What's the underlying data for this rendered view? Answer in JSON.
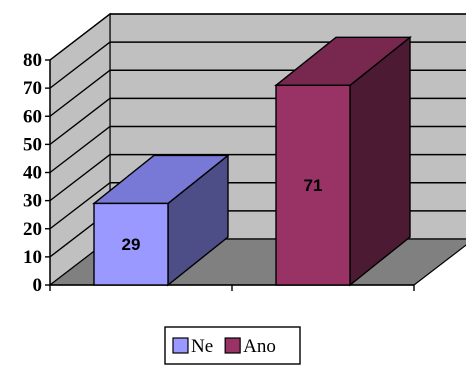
{
  "chart_data": {
    "type": "bar",
    "categories": [
      "Ne",
      "Ano"
    ],
    "values": [
      29,
      71
    ],
    "ylim": [
      0,
      80
    ],
    "yticks": [
      0,
      10,
      20,
      30,
      40,
      50,
      60,
      70,
      80
    ],
    "title": "",
    "xlabel": "",
    "ylabel": "",
    "grid": true,
    "three_d": true,
    "legend": {
      "placement": "bottom",
      "entries": [
        {
          "label": "Ne",
          "color": "#9999ff"
        },
        {
          "label": "Ano",
          "color": "#993366"
        }
      ]
    },
    "series_colors": {
      "front": [
        "#9999ff",
        "#993366"
      ],
      "top": [
        "#7878d6",
        "#78284f"
      ],
      "side": [
        "#4d4d87",
        "#4d1a33"
      ]
    },
    "wall_color": "#c0c0c0",
    "floor_color": "#808080"
  }
}
